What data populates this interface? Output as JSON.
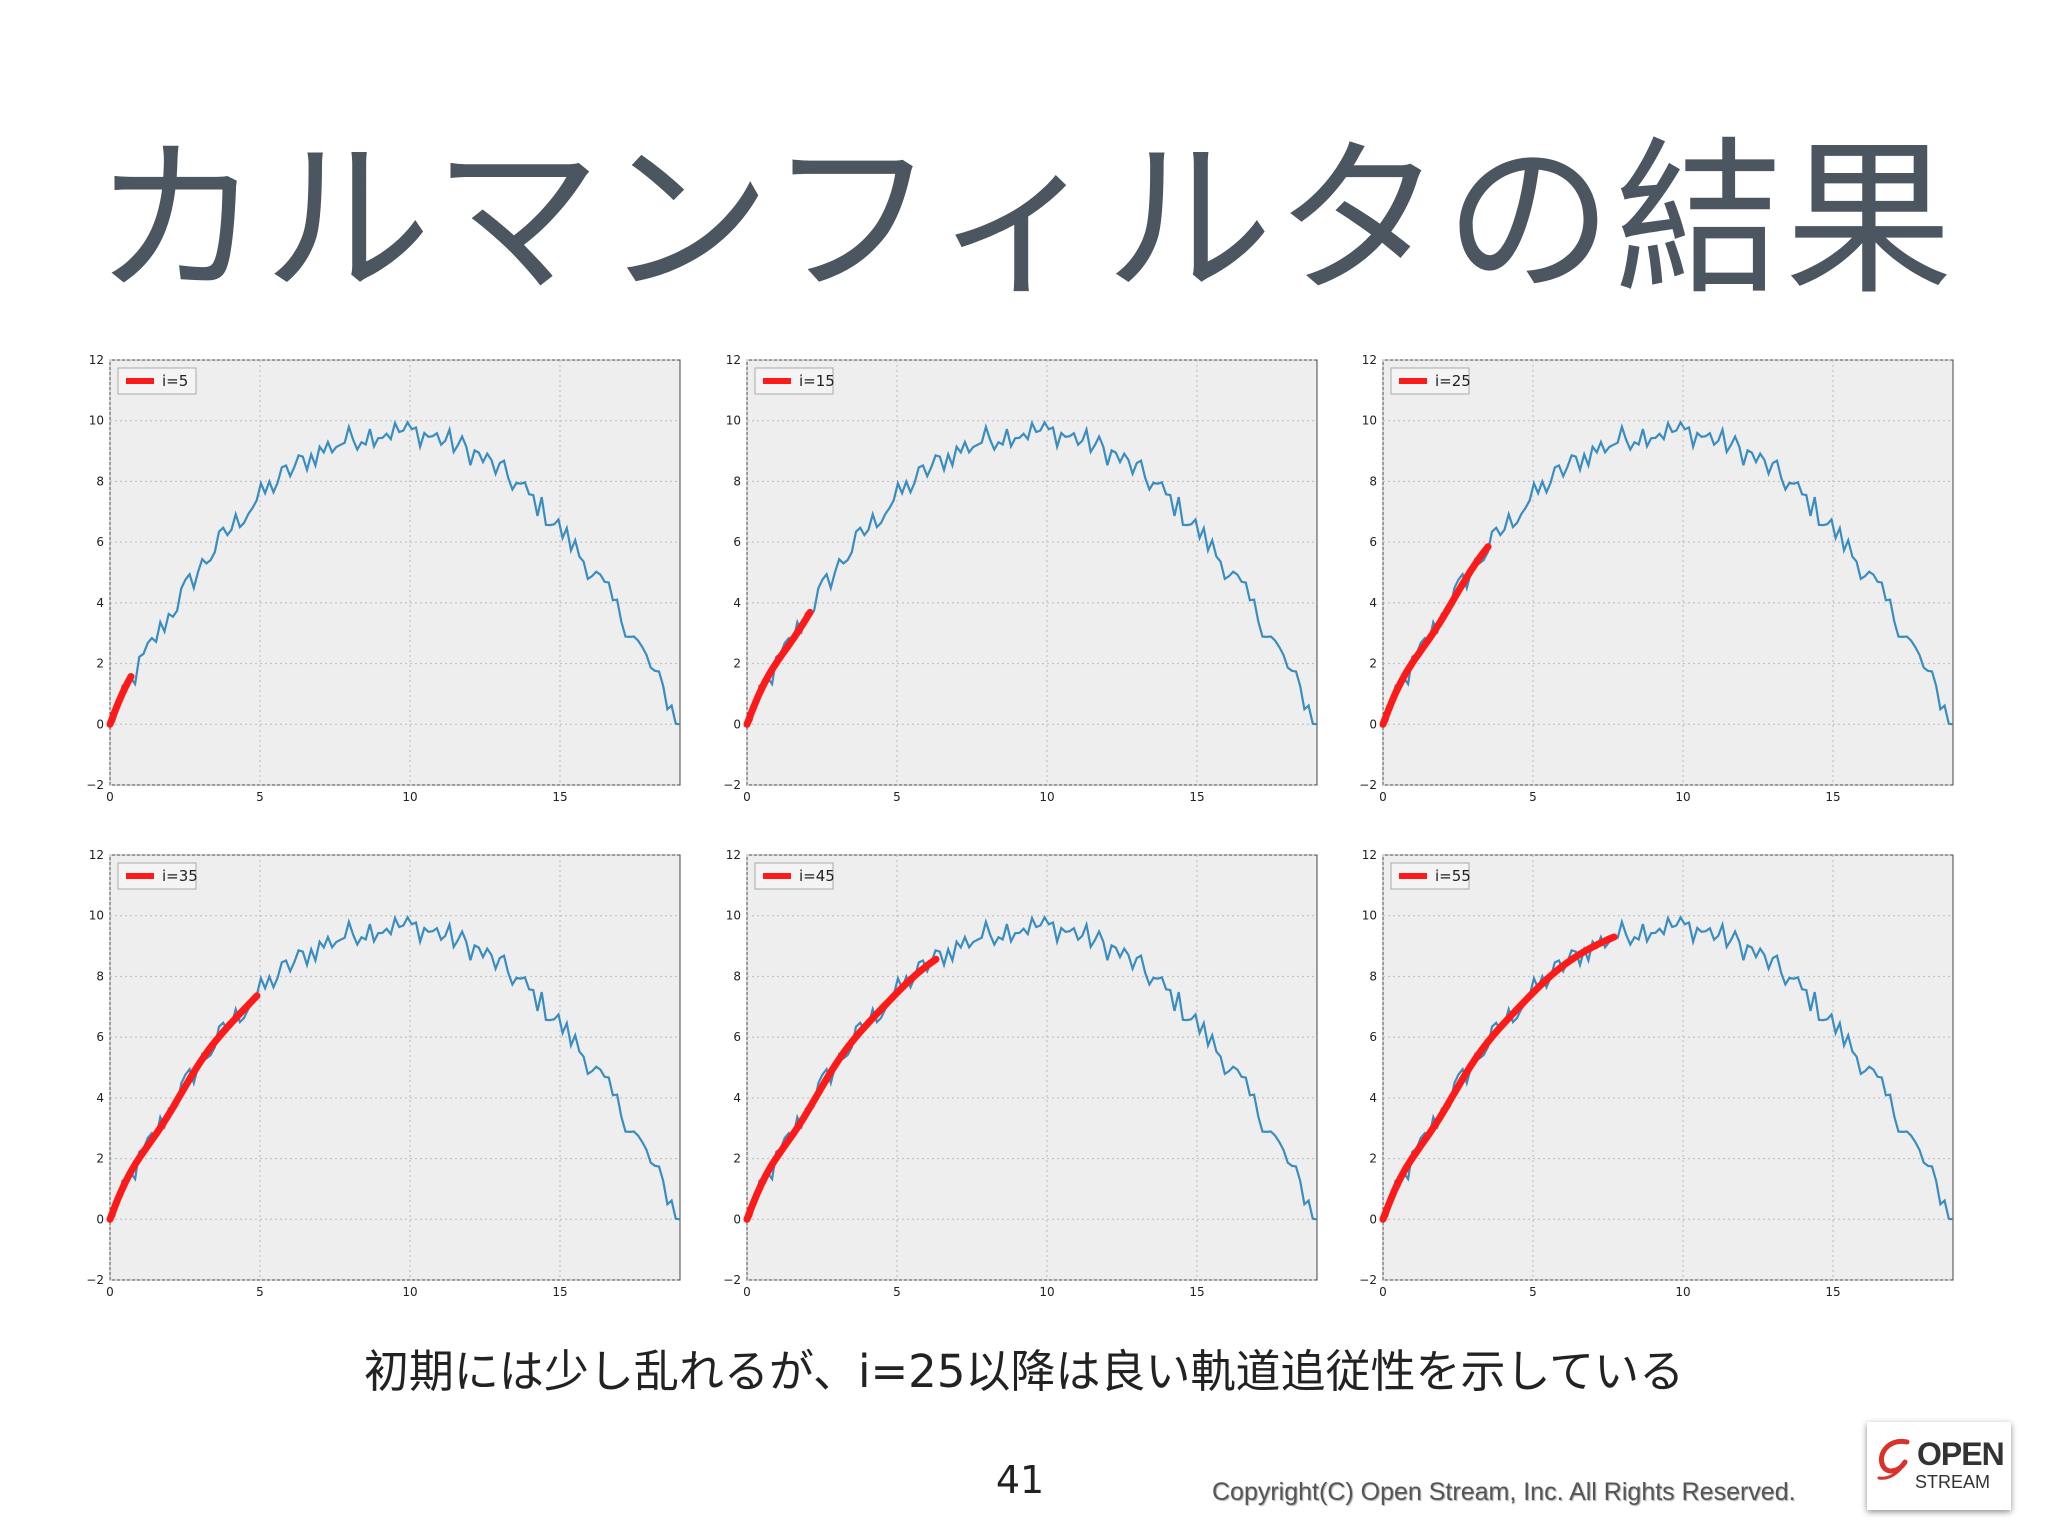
{
  "slide": {
    "title": "カルマンフィルタの結果",
    "caption": "初期には少し乱れるが、i=25以降は良い軌道追従性を示している",
    "page_number": "41",
    "copyright": "Copyright(C) Open Stream, Inc.    All Rights Reserved.",
    "logo": {
      "line1": "OPEN",
      "line2": "STREAM",
      "accent": "#d8322b"
    }
  },
  "colors": {
    "observed": "#3a8dc0",
    "filtered": "#ff1a1a",
    "plot_bg": "#eeeeee",
    "grid": "#bbbbbb"
  },
  "chart_data": [
    {
      "type": "line",
      "legend": "i=5",
      "legend_placement": "top-left",
      "filtered_until_x": 0.7,
      "xlim": [
        0,
        19
      ],
      "ylim": [
        -2,
        12
      ],
      "xticks": [
        0,
        5,
        10,
        15
      ],
      "yticks": [
        -2,
        0,
        2,
        4,
        6,
        8,
        10,
        12
      ],
      "grid": true
    },
    {
      "type": "line",
      "legend": "i=15",
      "legend_placement": "top-left",
      "filtered_until_x": 2.1,
      "xlim": [
        0,
        19
      ],
      "ylim": [
        -2,
        12
      ],
      "xticks": [
        0,
        5,
        10,
        15
      ],
      "yticks": [
        -2,
        0,
        2,
        4,
        6,
        8,
        10,
        12
      ],
      "grid": true
    },
    {
      "type": "line",
      "legend": "i=25",
      "legend_placement": "top-left",
      "filtered_until_x": 3.5,
      "xlim": [
        0,
        19
      ],
      "ylim": [
        -2,
        12
      ],
      "xticks": [
        0,
        5,
        10,
        15
      ],
      "yticks": [
        -2,
        0,
        2,
        4,
        6,
        8,
        10,
        12
      ],
      "grid": true
    },
    {
      "type": "line",
      "legend": "i=35",
      "legend_placement": "top-left",
      "filtered_until_x": 4.9,
      "xlim": [
        0,
        19
      ],
      "ylim": [
        -2,
        12
      ],
      "xticks": [
        0,
        5,
        10,
        15
      ],
      "yticks": [
        -2,
        0,
        2,
        4,
        6,
        8,
        10,
        12
      ],
      "grid": true
    },
    {
      "type": "line",
      "legend": "i=45",
      "legend_placement": "top-left",
      "filtered_until_x": 6.3,
      "xlim": [
        0,
        19
      ],
      "ylim": [
        -2,
        12
      ],
      "xticks": [
        0,
        5,
        10,
        15
      ],
      "yticks": [
        -2,
        0,
        2,
        4,
        6,
        8,
        10,
        12
      ],
      "grid": true
    },
    {
      "type": "line",
      "legend": "i=55",
      "legend_placement": "top-left",
      "filtered_until_x": 7.7,
      "xlim": [
        0,
        19
      ],
      "ylim": [
        -2,
        12
      ],
      "xticks": [
        0,
        5,
        10,
        15
      ],
      "yticks": [
        -2,
        0,
        2,
        4,
        6,
        8,
        10,
        12
      ],
      "grid": true
    }
  ]
}
